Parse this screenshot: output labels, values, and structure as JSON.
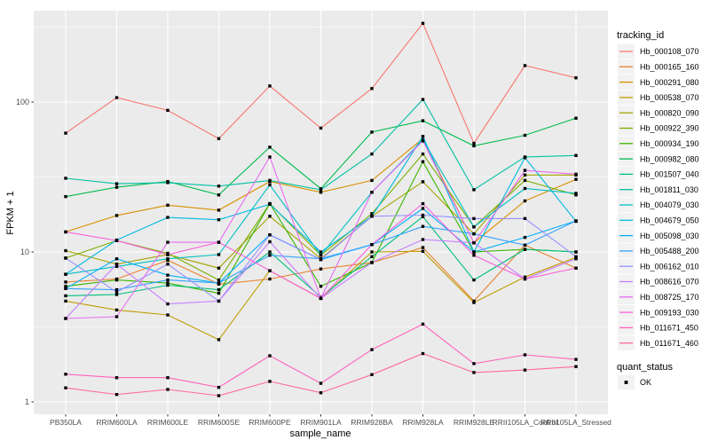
{
  "chart_data": {
    "type": "line",
    "title": "",
    "xlabel": "sample_name",
    "ylabel": "FPKM + 1",
    "y_scale": "log10",
    "y_ticks": [
      "1",
      "10",
      "100"
    ],
    "y_tick_values": [
      1,
      10,
      100
    ],
    "y_minor_values": [
      3.162,
      31.62,
      316.2
    ],
    "ylim": [
      1.05,
      360
    ],
    "grid": "major-white-on-gray",
    "legend_position": "right",
    "marker": "black-square",
    "x_categories": [
      "PB350LA",
      "RRIM600LA",
      "RRIM600LE",
      "RRIM600SE",
      "RRIM600PE",
      "RRIM901LA",
      "RRIM928BA",
      "RRIM928LA",
      "RRIM928LE",
      "RRII105LA_Control",
      "RRII105LA_Stressed"
    ],
    "legend": {
      "color_title": "tracking_id",
      "shape_title": "quant_status",
      "shape_items": [
        {
          "label": "OK",
          "shape": "filled-black-square"
        }
      ]
    },
    "series": [
      {
        "name": "Hb_000108_070",
        "color": "#F8766D",
        "values": [
          62,
          107,
          88,
          57,
          128,
          67,
          123,
          335,
          53,
          175,
          145
        ]
      },
      {
        "name": "Hb_000165_160",
        "color": "#EA8331",
        "values": [
          6.3,
          6.6,
          8.8,
          6.1,
          6.6,
          7.7,
          8.5,
          10.7,
          4.7,
          11.1,
          7.8
        ]
      },
      {
        "name": "Hb_000291_080",
        "color": "#D89000",
        "values": [
          13.6,
          17.5,
          20.5,
          19,
          29.5,
          25,
          30,
          57,
          11.5,
          21.9,
          30.5
        ]
      },
      {
        "name": "Hb_000538_070",
        "color": "#C09B00",
        "values": [
          4.7,
          4.1,
          3.8,
          2.6,
          7.5,
          4.9,
          10,
          10.1,
          4.6,
          6.8,
          9.2
        ]
      },
      {
        "name": "Hb_000820_090",
        "color": "#A3A500",
        "values": [
          10.2,
          8.3,
          9.6,
          7.8,
          17.3,
          9.0,
          17.3,
          29.4,
          13.2,
          32.6,
          32.6
        ]
      },
      {
        "name": "Hb_000922_390",
        "color": "#7CAE00",
        "values": [
          9.1,
          11.9,
          9.8,
          6.5,
          21,
          9.5,
          18,
          45,
          14.7,
          30,
          24
        ]
      },
      {
        "name": "Hb_000934_190",
        "color": "#39B600",
        "values": [
          5.9,
          6.5,
          6.2,
          5.3,
          21,
          5.9,
          8.5,
          40,
          10,
          10.4,
          10
        ]
      },
      {
        "name": "Hb_000982_080",
        "color": "#00BB4E",
        "values": [
          23.4,
          27,
          29.5,
          24,
          50,
          26.4,
          63,
          75,
          51,
          60,
          78
        ]
      },
      {
        "name": "Hb_001507_040",
        "color": "#00BF7D",
        "values": [
          5.1,
          5.2,
          6.0,
          5.6,
          10,
          5.0,
          9.3,
          17.2,
          6.5,
          10.4,
          10
        ]
      },
      {
        "name": "Hb_001811_030",
        "color": "#00C1A3",
        "values": [
          31,
          28.5,
          29,
          27.5,
          30,
          26,
          45,
          104,
          26,
          43,
          44
        ]
      },
      {
        "name": "Hb_004079_030",
        "color": "#00BFC4",
        "values": [
          7.1,
          8.0,
          9.0,
          9.6,
          28,
          9.5,
          25,
          56,
          14.7,
          26.5,
          24.6
        ]
      },
      {
        "name": "Hb_004679_050",
        "color": "#00BAE0",
        "values": [
          7.1,
          12,
          17,
          16.4,
          20.8,
          10,
          17.3,
          59,
          10,
          42.5,
          16
        ]
      },
      {
        "name": "Hb_005098_030",
        "color": "#00B0F6",
        "values": [
          5.7,
          9.0,
          7.0,
          6.2,
          13,
          8.9,
          11.2,
          19.5,
          10,
          12.5,
          16.1
        ]
      },
      {
        "name": "Hb_005488_200",
        "color": "#35A2FF",
        "values": [
          5.7,
          5.6,
          6.5,
          6.2,
          9.5,
          9.0,
          11.2,
          14.8,
          13.2,
          11.1,
          16.1
        ]
      },
      {
        "name": "Hb_006162_010",
        "color": "#9590FF",
        "values": [
          9.1,
          5.4,
          8.3,
          4.7,
          13,
          8.9,
          17.3,
          17.6,
          16.7,
          16.7,
          9.3
        ]
      },
      {
        "name": "Hb_008616_070",
        "color": "#C77CFF",
        "values": [
          3.6,
          8.3,
          4.5,
          4.7,
          11.7,
          4.9,
          8.5,
          12.1,
          11.5,
          6.6,
          9.0
        ]
      },
      {
        "name": "Hb_008725_170",
        "color": "#E76BF3",
        "values": [
          3.6,
          3.7,
          11.6,
          11.6,
          43,
          4.9,
          25,
          55,
          11.5,
          35,
          33
        ]
      },
      {
        "name": "Hb_009193_030",
        "color": "#FA62DB",
        "values": [
          13.6,
          11.9,
          9.6,
          11.6,
          7.5,
          4.9,
          11.2,
          21,
          9.5,
          6.6,
          7.8
        ]
      },
      {
        "name": "Hb_011671_450",
        "color": "#FF62BC",
        "values": [
          1.53,
          1.45,
          1.45,
          1.25,
          2.03,
          1.33,
          2.23,
          3.3,
          1.8,
          2.06,
          1.92
        ]
      },
      {
        "name": "Hb_011671_460",
        "color": "#FF6A98",
        "values": [
          1.24,
          1.12,
          1.21,
          1.1,
          1.37,
          1.15,
          1.52,
          2.1,
          1.57,
          1.63,
          1.72
        ]
      }
    ],
    "style": {
      "panel_bg": "#EBEBEB",
      "grid_major": "#FFFFFF",
      "grid_minor": "#FFFFFF",
      "tick_label_color": "#4D4D4D",
      "axis_title_color": "#000000",
      "legend_key_bg": "#F2F2F2",
      "marker_color": "#000000"
    }
  }
}
